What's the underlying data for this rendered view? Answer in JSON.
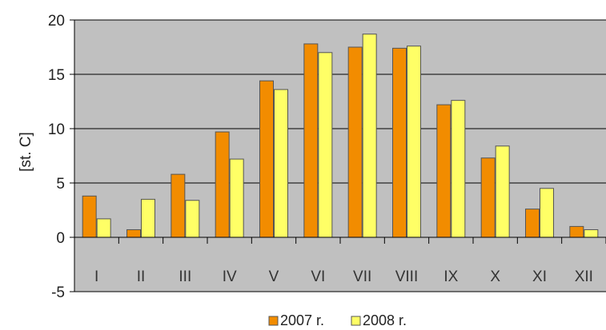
{
  "chart_data": {
    "type": "bar",
    "title": "",
    "xlabel": "",
    "ylabel": "[st. C]",
    "ylim": [
      -5,
      20
    ],
    "yticks": [
      -5,
      0,
      5,
      10,
      15,
      20
    ],
    "grid": true,
    "legend_position": "bottom",
    "categories": [
      "I",
      "II",
      "III",
      "IV",
      "V",
      "VI",
      "VII",
      "VIII",
      "IX",
      "X",
      "XI",
      "XII"
    ],
    "series": [
      {
        "name": "2007 r.",
        "color": "#f28c00",
        "values": [
          3.8,
          0.7,
          5.8,
          9.7,
          14.4,
          17.8,
          17.5,
          17.4,
          12.2,
          7.3,
          2.6,
          1.0
        ]
      },
      {
        "name": "2008 r.",
        "color": "#ffff66",
        "values": [
          1.7,
          3.5,
          3.4,
          7.2,
          13.6,
          17.0,
          18.7,
          17.6,
          12.6,
          8.4,
          4.5,
          0.7
        ]
      }
    ],
    "plot_bg_color": "#c0c0c0"
  }
}
